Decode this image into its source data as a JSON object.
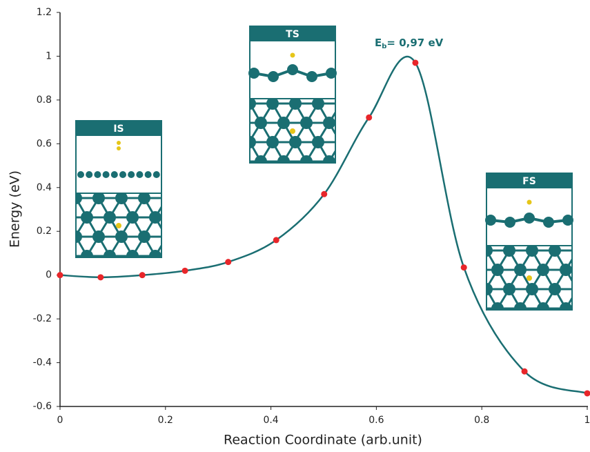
{
  "chart_data": {
    "type": "line",
    "x_label": "Reaction Coordinate (arb.unit)",
    "y_label": "Energy (eV)",
    "annotation": {
      "main": "E",
      "sub": "b",
      "rest": "= 0,97 eV"
    },
    "insets": [
      "IS",
      "TS",
      "FS"
    ],
    "x": [
      0,
      0.077,
      0.156,
      0.237,
      0.319,
      0.41,
      0.501,
      0.586,
      0.674,
      0.766,
      0.881,
      1.0
    ],
    "series": [
      {
        "color": "#1a6e72",
        "marker_color": "#e8262a",
        "values": [
          0,
          -0.01,
          0.0,
          0.02,
          0.06,
          0.16,
          0.37,
          0.72,
          0.97,
          0.035,
          -0.44,
          -0.54
        ]
      }
    ],
    "xlim": [
      0,
      1
    ],
    "xticks": [
      0,
      0.2,
      0.4,
      0.6,
      0.8,
      1
    ],
    "ylim": [
      -0.6,
      1.2
    ],
    "yticks": [
      -0.6,
      -0.4,
      -0.2,
      0,
      0.2,
      0.4,
      0.6,
      0.8,
      1,
      1.2
    ],
    "grid": false
  }
}
